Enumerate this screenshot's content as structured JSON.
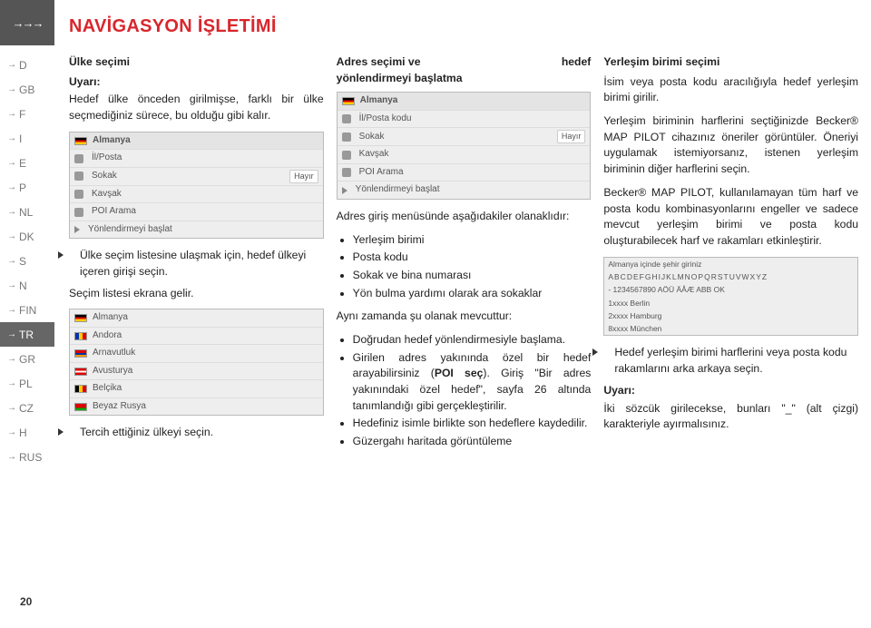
{
  "header": "NAVİGASYON İŞLETİMİ",
  "sidebar": {
    "top": "→→→",
    "items": [
      {
        "label": "D"
      },
      {
        "label": "GB"
      },
      {
        "label": "F"
      },
      {
        "label": "I"
      },
      {
        "label": "E"
      },
      {
        "label": "P"
      },
      {
        "label": "NL"
      },
      {
        "label": "DK"
      },
      {
        "label": "S"
      },
      {
        "label": "N"
      },
      {
        "label": "FIN"
      },
      {
        "label": "TR",
        "active": true
      },
      {
        "label": "GR"
      },
      {
        "label": "PL"
      },
      {
        "label": "CZ"
      },
      {
        "label": "H"
      },
      {
        "label": "RUS"
      }
    ]
  },
  "col1": {
    "subhead": "Ülke seçimi",
    "warn": "Uyarı:",
    "warntext": "Hedef ülke önceden girilmişse, farklı bir ülke seçmediğiniz sürece, bu olduğu gibi kalır.",
    "menu1": {
      "head": "Almanya",
      "rows": [
        {
          "l": "İl/Posta",
          "r": ""
        },
        {
          "l": "Sokak",
          "r": "Hayır"
        },
        {
          "l": "Kavşak",
          "r": ""
        },
        {
          "l": "POI Arama",
          "r": ""
        },
        {
          "l": "Yönlendirmeyi başlat",
          "r": ""
        }
      ]
    },
    "p1": "Ülke seçim listesine ulaşmak için, hedef ülkeyi içeren girişi seçin.",
    "p2": "Seçim listesi ekrana gelir.",
    "countries": [
      {
        "flag": "de",
        "name": "Almanya"
      },
      {
        "flag": "ad",
        "name": "Andora"
      },
      {
        "flag": "arn",
        "name": "Arnavutluk"
      },
      {
        "flag": "at",
        "name": "Avusturya"
      },
      {
        "flag": "be",
        "name": "Belçika"
      },
      {
        "flag": "by",
        "name": "Beyaz Rusya"
      }
    ],
    "p3": "Tercih ettiğiniz ülkeyi seçin."
  },
  "col2": {
    "subhead_l": "Adres   seçimi   ve",
    "subhead_r": "hedef",
    "subhead2": "yönlendirmeyi başlatma",
    "menu": {
      "head": "Almanya",
      "rows": [
        {
          "l": "İl/Posta kodu",
          "r": ""
        },
        {
          "l": "Sokak",
          "r": "Hayır"
        },
        {
          "l": "Kavşak",
          "r": ""
        },
        {
          "l": "POI Arama",
          "r": ""
        },
        {
          "l": "Yönlendirmeyi başlat",
          "r": ""
        }
      ]
    },
    "p1": "Adres giriş menüsünde aşağıdakiler olanaklıdır:",
    "list1": [
      "Yerleşim birimi",
      "Posta kodu",
      "Sokak ve bina numarası",
      "Yön bulma yardımı olarak ara sokaklar"
    ],
    "p2": "Aynı zamanda şu olanak mevcuttur:",
    "list2": [
      "Doğrudan hedef yönlendirmesiyle başlama.",
      "Girilen adres yakınında özel bir hedef arayabilirsiniz (POI seç). Giriş \"Bir adres yakınındaki özel hedef\", sayfa 26 altında tanımlandığı gibi gerçekleştirilir.",
      "Hedefiniz isimle birlikte son hedeflere kaydedilir.",
      "Güzergahı haritada görüntüleme"
    ],
    "poi": "POI seç"
  },
  "col3": {
    "subhead": "Yerleşim birimi seçimi",
    "p1": "İsim veya posta kodu aracılığıyla hedef yerleşim birimi girilir.",
    "p2": "Yerleşim biriminin harflerini seçtiğinizde Becker® MAP PILOT cihazınız öneriler görüntüler. Öneriyi uygulamak istemiyorsanız, istenen yerleşim biriminin diğer harflerini seçin.",
    "p3": "Becker® MAP PILOT, kullanılamayan tüm harf ve posta kodu kombinasyonlarını engeller ve sadece mevcut yerleşim birimi ve posta kodu oluşturabilecek harf ve rakamları etkinleştirir.",
    "kbd": {
      "l1": "Almanya içinde şehir giriniz",
      "l2": "ABCDEFGHIJKLMNOPQRSTUVWXYZ",
      "l3": "- 1234567890     AÖÜ  ÄÅÆ ABB OK",
      "l4": "1xxxx Berlin",
      "l5": "2xxxx Hamburg",
      "l6": "8xxxx München"
    },
    "p4": "Hedef yerleşim birimi harflerini veya posta kodu rakamlarını arka arkaya seçin.",
    "warn": "Uyarı:",
    "p5": "İki sözcük girilecekse, bunları \"_\" (alt çizgi) karakteriyle ayırmalısınız."
  },
  "pagenum": "20"
}
